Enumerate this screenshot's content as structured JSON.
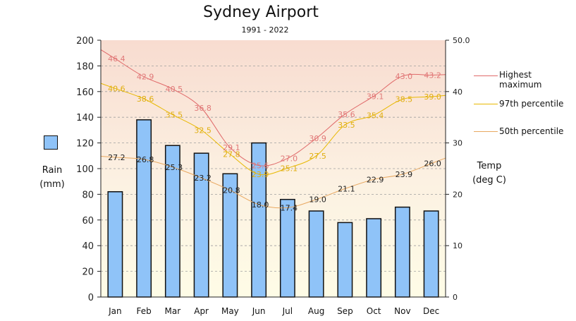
{
  "title": "Sydney Airport",
  "subtitle": "1991 - 2022",
  "rain_label_line1": "Rain",
  "rain_label_line2": "(mm)",
  "temp_label_line1": "Temp",
  "temp_label_line2": "(deg C)",
  "legend": [
    {
      "label": "Highest maximum",
      "color": "#e06a6a"
    },
    {
      "label": "97th percentile",
      "color": "#e8b800"
    },
    {
      "label": "50th percentile",
      "color": "#e8a860"
    }
  ],
  "chart_data": {
    "type": "bar+line",
    "categories": [
      "Jan",
      "Feb",
      "Mar",
      "Apr",
      "May",
      "Jun",
      "Jul",
      "Aug",
      "Sep",
      "Oct",
      "Nov",
      "Dec"
    ],
    "rain": {
      "name": "Rain",
      "values": [
        82,
        138,
        118,
        112,
        96,
        120,
        76,
        67,
        58,
        61,
        70,
        67
      ],
      "color": "#8fc3f8"
    },
    "left_axis": {
      "min": 0,
      "max": 200,
      "ticks": [
        "0",
        "20",
        "40",
        "60",
        "80",
        "100",
        "120",
        "140",
        "160",
        "180",
        "200"
      ]
    },
    "right_axis": {
      "min": 0,
      "max": 50,
      "ticks": [
        "0",
        "10",
        "20",
        "30",
        "40",
        "50.0"
      ]
    },
    "series": [
      {
        "name": "Highest maximum",
        "color": "#e06a6a",
        "label_color": "#e07878",
        "values": [
          46.4,
          42.9,
          40.5,
          36.8,
          29.1,
          25.6,
          27.0,
          30.9,
          35.6,
          39.1,
          43.0,
          43.2
        ],
        "labels": [
          "46.4",
          "42.9",
          "40.5",
          "36.8",
          "29.1",
          "25.6",
          "27.0",
          "30.9",
          "35.6",
          "39.1",
          "43.0",
          "43.2"
        ]
      },
      {
        "name": "97th percentile",
        "color": "#e8b800",
        "label_color": "#e0ae10",
        "values": [
          40.6,
          38.6,
          35.5,
          32.5,
          27.8,
          23.9,
          25.1,
          27.5,
          33.5,
          35.4,
          38.5,
          39.0
        ],
        "labels": [
          "40.6",
          "38.6",
          "35.5",
          "32.5",
          "27.8",
          "23.9",
          "25.1",
          "27.5",
          "33.5",
          "35.4",
          "38.5",
          "39.0"
        ]
      },
      {
        "name": "50th percentile",
        "color": "#e8a860",
        "label_color": "#222222",
        "values": [
          27.2,
          26.8,
          25.3,
          23.2,
          20.8,
          18.0,
          17.4,
          19.0,
          21.1,
          22.9,
          23.9,
          26.0
        ],
        "labels": [
          "27.2",
          "26.8",
          "25.3",
          "23.2",
          "20.8",
          "18.0",
          "17.4",
          "19.0",
          "21.1",
          "22.9",
          "23.9",
          "26.0"
        ]
      }
    ],
    "grid": true
  }
}
